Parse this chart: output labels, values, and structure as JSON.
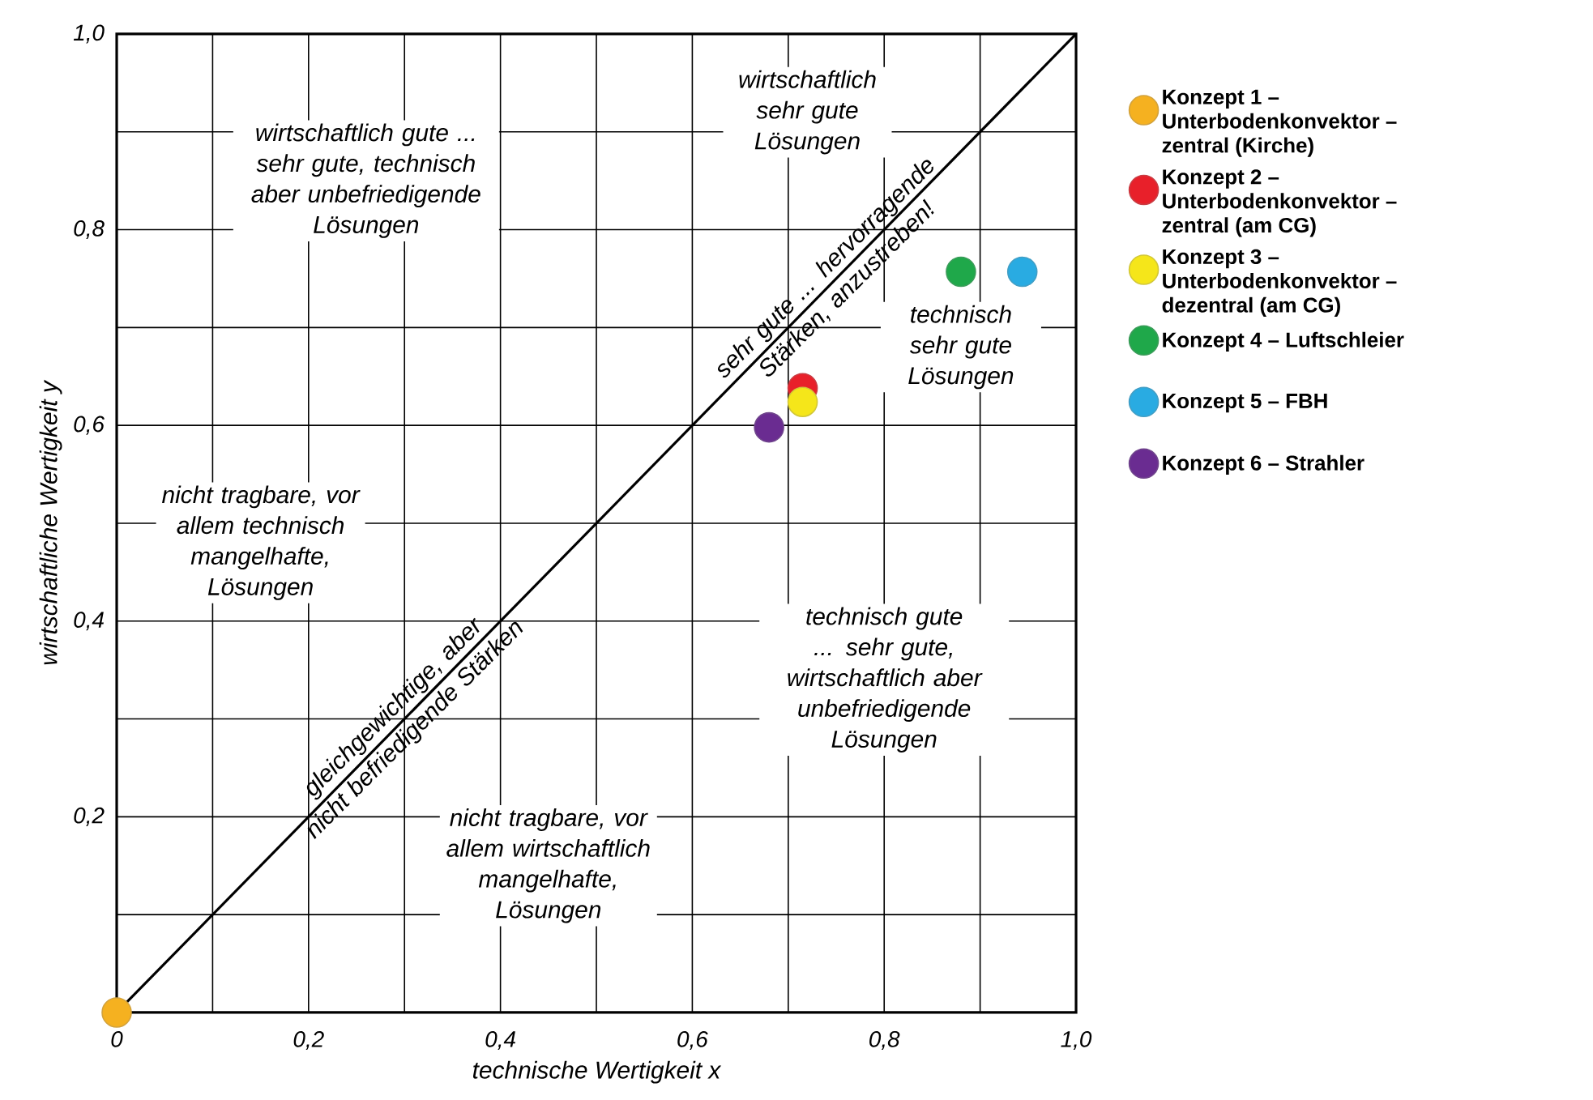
{
  "chart_data": {
    "type": "scatter",
    "xlabel": "technische Wertigkeit x",
    "ylabel": "wirtschaftliche Wertigkeit y",
    "xlim": [
      0,
      1
    ],
    "ylim": [
      0,
      1
    ],
    "xticks": [
      0,
      {
        "value": 0.1,
        "label": null
      },
      {
        "value": 0.2,
        "label": "0,2"
      },
      {
        "value": 0.3,
        "label": null
      },
      {
        "value": 0.4,
        "label": "0,4"
      },
      {
        "value": 0.5,
        "label": null
      },
      {
        "value": 0.6,
        "label": "0,6"
      },
      {
        "value": 0.7,
        "label": null
      },
      {
        "value": 0.8,
        "label": "0,8"
      },
      {
        "value": 0.9,
        "label": null
      },
      {
        "value": 1,
        "label": "1,0"
      }
    ],
    "yticks": [
      {
        "value": 0.1,
        "label": null
      },
      {
        "value": 0.2,
        "label": "0,2"
      },
      {
        "value": 0.3,
        "label": null
      },
      {
        "value": 0.4,
        "label": "0,4"
      },
      {
        "value": 0.5,
        "label": null
      },
      {
        "value": 0.6,
        "label": "0,6"
      },
      {
        "value": 0.7,
        "label": null
      },
      {
        "value": 0.8,
        "label": "0,8"
      },
      {
        "value": 0.9,
        "label": null
      },
      {
        "value": 1,
        "label": "1,0"
      }
    ],
    "grid": true,
    "legend": "right",
    "marker": "circle",
    "series": [
      {
        "type": "line",
        "color": "#000000",
        "marker": "none",
        "x": [
          0,
          1
        ],
        "values": [
          0,
          1
        ]
      },
      {
        "name": "Konzept 1 – Unterbodenkonvektor – zentral (Kirche)",
        "color": "#f5b120",
        "x": [
          0.0
        ],
        "values": [
          0.0
        ]
      },
      {
        "name": "Konzept 2 – Unterbodenkonvektor – zentral (am CG)",
        "color": "#e8202a",
        "x": [
          0.715
        ],
        "values": [
          0.638
        ]
      },
      {
        "name": "Konzept 3 – Unterbodenkonvektor – dezentral (am CG)",
        "color": "#f5e61a",
        "x": [
          0.715
        ],
        "values": [
          0.624
        ]
      },
      {
        "name": "Konzept 4 – Luftschleier",
        "color": "#1fa84a",
        "x": [
          0.88
        ],
        "values": [
          0.757
        ]
      },
      {
        "name": "Konzept 5 – FBH",
        "color": "#29abe2",
        "x": [
          0.944
        ],
        "values": [
          0.757
        ]
      },
      {
        "name": "Konzept 6 – Strahler",
        "color": "#6a2c91",
        "x": [
          0.68
        ],
        "values": [
          0.598
        ]
      }
    ],
    "annotations": [
      "wirtschaftlich gute ... sehr gute, technisch aber unbefriedigende Lösungen",
      "wirtschaftlich sehr gute Lösungen",
      "technisch sehr gute Lösungen",
      "nicht tragbare, vor allem technisch mangelhafte, Lösungen",
      "technisch gute ... sehr gute, wirtschaftlich aber unbefriedigende Lösungen",
      "nicht tragbare, vor allem wirtschaftlich mangelhafte, Lösungen",
      "gleichgewichtige, aber nicht befriedigende Stärken",
      "sehr gute ... hervorragende Stärken, anzustreben!"
    ]
  }
}
